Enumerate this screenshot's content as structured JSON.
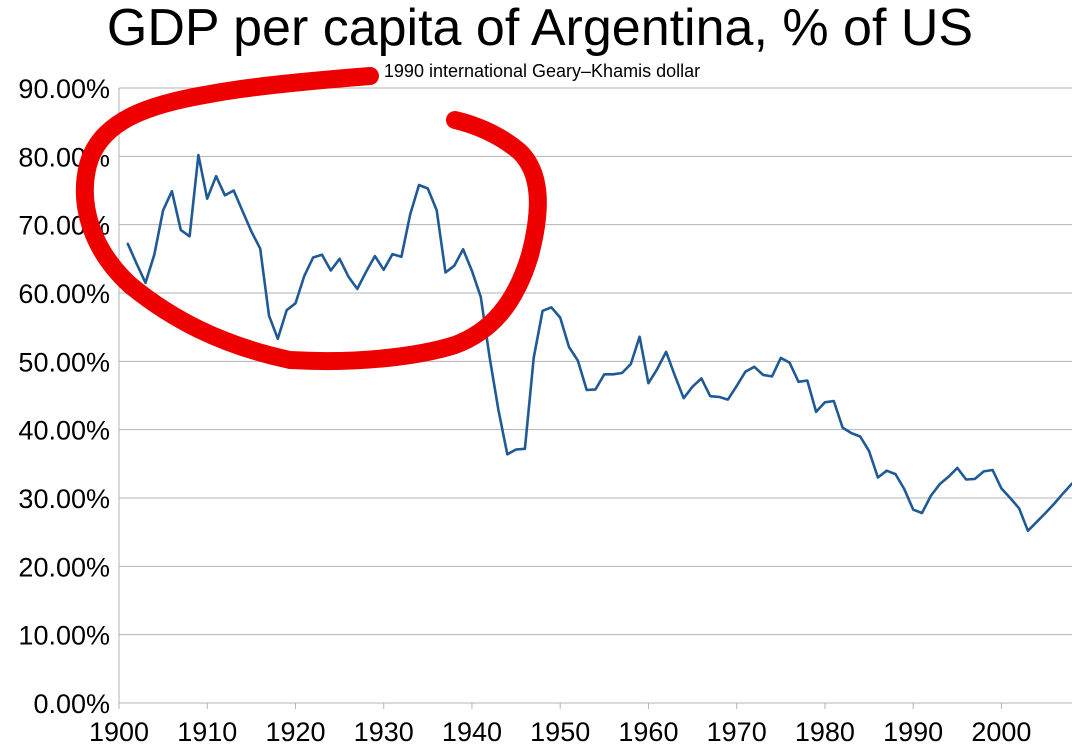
{
  "chart_data": {
    "type": "line",
    "title": "GDP per capita of Argentina, % of US",
    "subtitle": "1990 international Geary–Khamis dollar",
    "xlabel": "",
    "ylabel": "",
    "xlim": [
      1900,
      2008
    ],
    "ylim": [
      0,
      90
    ],
    "grid": true,
    "x_ticks": [
      1900,
      1910,
      1920,
      1930,
      1940,
      1950,
      1960,
      1970,
      1980,
      1990,
      2000
    ],
    "y_ticks": [
      "0.00%",
      "10.00%",
      "20.00%",
      "30.00%",
      "40.00%",
      "50.00%",
      "60.00%",
      "70.00%",
      "80.00%",
      "90.00%"
    ],
    "series": [
      {
        "name": "Argentina GDP per capita as % of US",
        "color": "#1f5a96",
        "x": [
          1901,
          1902,
          1903,
          1904,
          1905,
          1906,
          1907,
          1908,
          1909,
          1910,
          1911,
          1912,
          1913,
          1914,
          1915,
          1916,
          1917,
          1918,
          1919,
          1920,
          1921,
          1922,
          1923,
          1924,
          1925,
          1926,
          1927,
          1928,
          1929,
          1930,
          1931,
          1932,
          1933,
          1934,
          1935,
          1936,
          1937,
          1938,
          1939,
          1940,
          1941,
          1942,
          1943,
          1944,
          1945,
          1946,
          1947,
          1948,
          1949,
          1950,
          1951,
          1952,
          1953,
          1954,
          1955,
          1956,
          1957,
          1958,
          1959,
          1960,
          1961,
          1962,
          1963,
          1964,
          1965,
          1966,
          1967,
          1968,
          1969,
          1970,
          1971,
          1972,
          1973,
          1974,
          1975,
          1976,
          1977,
          1978,
          1979,
          1980,
          1981,
          1982,
          1983,
          1984,
          1985,
          1986,
          1987,
          1988,
          1989,
          1990,
          1991,
          1992,
          1993,
          1994,
          1995,
          1996,
          1997,
          1998,
          1999,
          2000,
          2001,
          2002,
          2003,
          2004,
          2005,
          2006,
          2007,
          2008
        ],
        "values": [
          67.2,
          64.3,
          61.5,
          65.6,
          72.1,
          74.9,
          69.2,
          68.3,
          80.2,
          73.8,
          77.1,
          74.3,
          75.0,
          72.0,
          69.0,
          66.5,
          56.7,
          53.3,
          57.5,
          58.5,
          62.5,
          65.2,
          65.6,
          63.3,
          65.0,
          62.4,
          60.6,
          63.1,
          65.4,
          63.4,
          65.7,
          65.3,
          71.5,
          75.8,
          75.3,
          72.1,
          63.0,
          64.0,
          66.4,
          63.2,
          59.4,
          50.6,
          42.9,
          36.4,
          37.1,
          37.2,
          50.5,
          57.4,
          57.9,
          56.4,
          52.1,
          50.1,
          45.8,
          45.9,
          48.1,
          48.1,
          48.3,
          49.6,
          53.6,
          46.8,
          48.9,
          51.4,
          47.9,
          44.6,
          46.3,
          47.5,
          44.9,
          44.8,
          44.4,
          46.4,
          48.5,
          49.2,
          48.0,
          47.8,
          50.5,
          49.8,
          47.0,
          47.2,
          42.6,
          44.0,
          44.2,
          40.3,
          39.5,
          39.0,
          36.9,
          33.0,
          34.0,
          33.5,
          31.3,
          28.3,
          27.8,
          30.3,
          32.0,
          33.1,
          34.4,
          32.7,
          32.8,
          33.9,
          34.1,
          31.4,
          30.0,
          28.5,
          25.2,
          26.5,
          27.8,
          29.2,
          30.7,
          32.1
        ]
      }
    ],
    "annotation": {
      "type": "freehand-circle",
      "color": "#ee0000",
      "description_range_years": [
        1900,
        1940
      ]
    }
  }
}
